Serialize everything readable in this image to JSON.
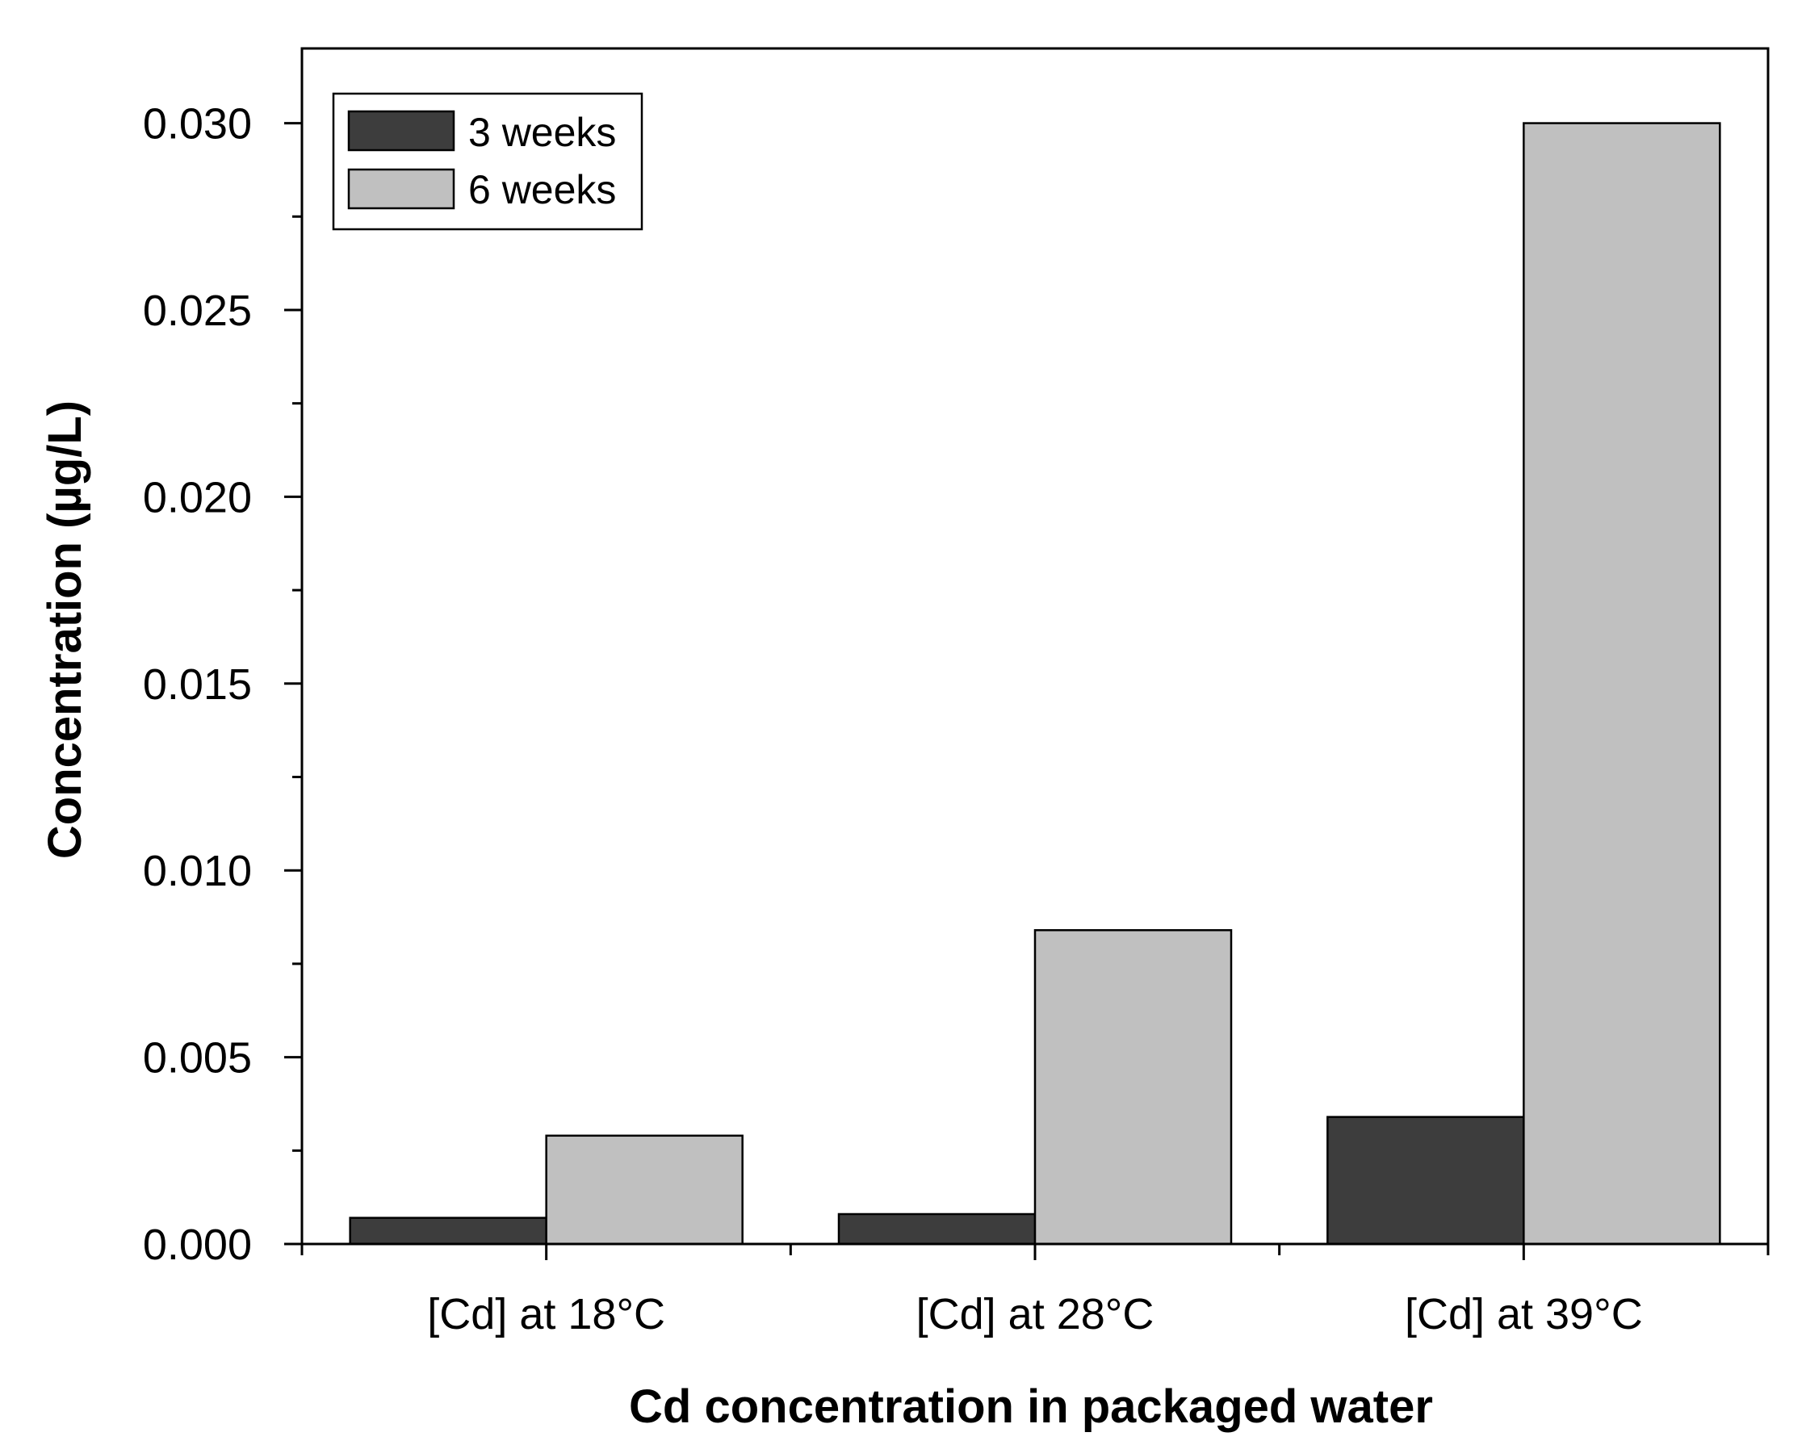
{
  "chart_data": {
    "type": "bar",
    "title": "",
    "xlabel": "Cd concentration in packaged water",
    "ylabel": "Concentration (µg/L)",
    "categories": [
      "[Cd] at 18°C",
      "[Cd] at 28°C",
      "[Cd] at 39°C"
    ],
    "series": [
      {
        "name": "3 weeks",
        "color": "#3d3d3d",
        "values": [
          0.0007,
          0.0008,
          0.0034
        ]
      },
      {
        "name": "6 weeks",
        "color": "#c0c0c0",
        "values": [
          0.0029,
          0.0084,
          0.03
        ]
      }
    ],
    "ylim": [
      0,
      0.032
    ],
    "yticks": [
      "0.000",
      "0.005",
      "0.010",
      "0.015",
      "0.020",
      "0.025",
      "0.030"
    ],
    "ytick_values": [
      0,
      0.005,
      0.01,
      0.015,
      0.02,
      0.025,
      0.03
    ],
    "grid": false,
    "legend_position": "top-left"
  }
}
